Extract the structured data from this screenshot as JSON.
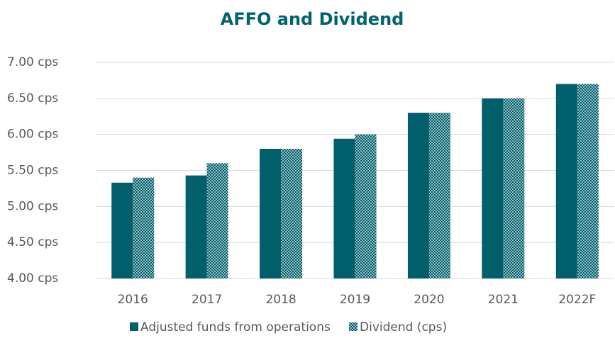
{
  "chart_data": {
    "type": "bar",
    "title": "AFFO and Dividend",
    "categories": [
      "2016",
      "2017",
      "2018",
      "2019",
      "2020",
      "2021",
      "2022F"
    ],
    "series": [
      {
        "name": "Adjusted funds from operations",
        "color": "#005f6b",
        "values": [
          5.33,
          5.43,
          5.8,
          5.94,
          6.3,
          6.5,
          6.7
        ]
      },
      {
        "name": "Dividend (cps)",
        "color": "#005f6b",
        "pattern": "dotted",
        "values": [
          5.4,
          5.6,
          5.8,
          6.0,
          6.3,
          6.5,
          6.7
        ]
      }
    ],
    "ylim": [
      4,
      7
    ],
    "yticks": [
      {
        "value": 4,
        "label": "4.00 cps"
      },
      {
        "value": 4.5,
        "label": "4.50 cps"
      },
      {
        "value": 5,
        "label": "5.00 cps"
      },
      {
        "value": 5.5,
        "label": "5.50 cps"
      },
      {
        "value": 6,
        "label": "6.00 cps"
      },
      {
        "value": 6.5,
        "label": "6.50 cps"
      },
      {
        "value": 7,
        "label": "7.00 cps"
      }
    ],
    "grid": true,
    "legend": "bottom"
  }
}
